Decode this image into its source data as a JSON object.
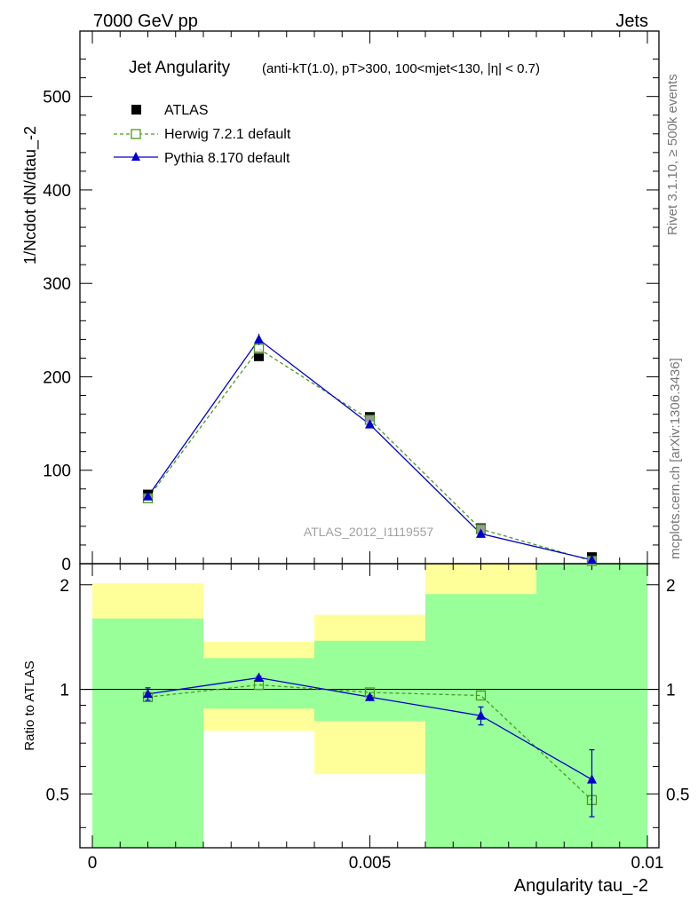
{
  "header": {
    "left": "7000 GeV pp",
    "right": "Jets"
  },
  "side_labels": {
    "rivet": "Rivet 3.1.10, ≥ 500k events",
    "mcplots": "mcplots.cern.ch [arXiv:1306.3436]"
  },
  "chart_data": [
    {
      "type": "line",
      "title": "Jet Angularity",
      "subtitle": "(anti-kT(1.0), pT>300, 100<mjet<130, |η| < 0.7)",
      "ylabel": "1/Ncdot dN/dtau_-2",
      "watermark": "ATLAS_2012_I1119557",
      "xlim": [
        0,
        0.01
      ],
      "ylim": [
        0,
        570
      ],
      "yticks": [
        0,
        100,
        200,
        300,
        400,
        500
      ],
      "x": [
        0.001,
        0.003,
        0.005,
        0.007,
        0.009
      ],
      "series": [
        {
          "name": "ATLAS",
          "style": "marker-square-filled",
          "color": "#000000",
          "values": [
            74,
            222,
            157,
            38,
            7
          ]
        },
        {
          "name": "Herwig 7.2.1 default",
          "style": "dashed-open-square",
          "color": "#4a9a1f",
          "values": [
            70,
            230,
            154,
            37,
            3
          ]
        },
        {
          "name": "Pythia 8.170 default",
          "style": "solid-triangle",
          "color": "#0000cc",
          "values": [
            72,
            240,
            149,
            32,
            4
          ],
          "errors": [
            4,
            6,
            4,
            2,
            1
          ]
        }
      ],
      "legend_position": "top-left"
    },
    {
      "type": "line",
      "ylabel": "Ratio to ATLAS",
      "xlabel": "Angularity tau_-2",
      "xlim": [
        0,
        0.01
      ],
      "ylim": [
        0.35,
        2.3
      ],
      "scale": "log",
      "yticks": [
        0.5,
        1,
        2
      ],
      "xticks": [
        0,
        0.005,
        0.01
      ],
      "xtick_labels": [
        "0",
        "0.005",
        "0.01"
      ],
      "reference_line": 1,
      "bands": [
        {
          "x": [
            0.0,
            0.002
          ],
          "yellow": [
            0.3,
            2.02
          ],
          "green": [
            0.3,
            1.6
          ]
        },
        {
          "x": [
            0.002,
            0.004
          ],
          "yellow": [
            0.76,
            1.37
          ],
          "green": [
            0.88,
            1.23
          ]
        },
        {
          "x": [
            0.004,
            0.006
          ],
          "yellow": [
            0.57,
            1.64
          ],
          "green": [
            0.81,
            1.38
          ]
        },
        {
          "x": [
            0.006,
            0.008
          ],
          "yellow": [
            0.3,
            2.4
          ],
          "green": [
            0.3,
            1.88
          ]
        },
        {
          "x": [
            0.008,
            0.01
          ],
          "yellow": [
            0.3,
            2.4
          ],
          "green": [
            0.3,
            2.4
          ]
        }
      ],
      "x": [
        0.001,
        0.003,
        0.005,
        0.007,
        0.009
      ],
      "series": [
        {
          "name": "Herwig 7.2.1 default",
          "color": "#4a9a1f",
          "values": [
            0.95,
            1.03,
            0.98,
            0.96,
            0.48
          ],
          "errors": [
            0,
            0,
            0,
            0,
            0.05
          ]
        },
        {
          "name": "Pythia 8.170 default",
          "color": "#0000cc",
          "values": [
            0.97,
            1.08,
            0.95,
            0.84,
            0.55
          ],
          "errors": [
            0.04,
            0.01,
            0.01,
            0.05,
            0.12
          ]
        }
      ]
    }
  ]
}
